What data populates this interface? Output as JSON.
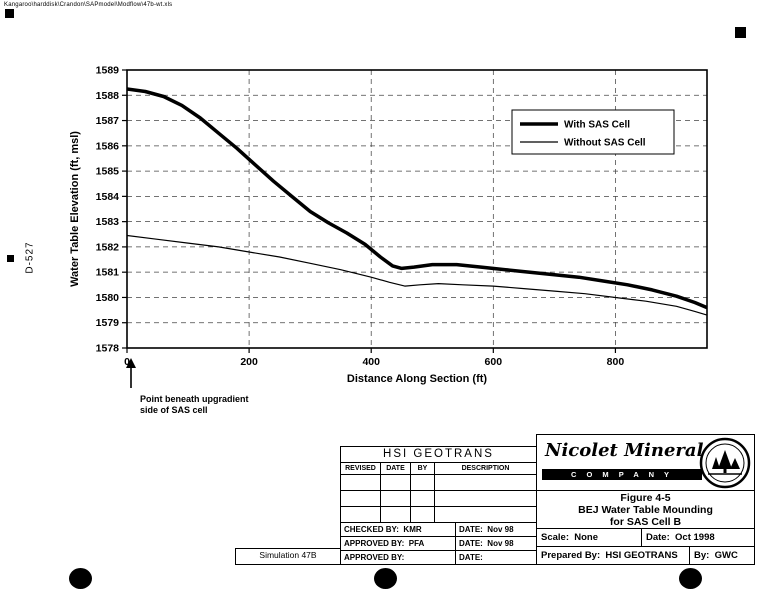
{
  "header": {
    "file_path": "Kangaroo\\harddisk\\Crandon\\SAPmodel\\Modflow\\47b-wt.xls",
    "doc_number": "D-527"
  },
  "chart_data": {
    "type": "line",
    "title": "",
    "xlabel": "Distance Along Section (ft)",
    "ylabel": "Water Table Elevation (ft, msl)",
    "xlim": [
      0,
      950
    ],
    "ylim": [
      1578,
      1589
    ],
    "xticks": [
      0,
      200,
      400,
      600,
      800
    ],
    "yticks": [
      1578,
      1579,
      1580,
      1581,
      1582,
      1583,
      1584,
      1585,
      1586,
      1587,
      1588,
      1589
    ],
    "grid": "dashed",
    "legend_position": "upper-right-inside",
    "series": [
      {
        "name": "With SAS Cell",
        "width": 3.5,
        "x": [
          0,
          30,
          60,
          90,
          120,
          150,
          180,
          210,
          240,
          270,
          300,
          330,
          360,
          390,
          415,
          435,
          450,
          470,
          500,
          540,
          580,
          620,
          660,
          700,
          740,
          780,
          820,
          860,
          900,
          930,
          950
        ],
        "y": [
          1588.25,
          1588.15,
          1587.95,
          1587.6,
          1587.1,
          1586.5,
          1585.9,
          1585.25,
          1584.6,
          1584.0,
          1583.4,
          1582.95,
          1582.55,
          1582.1,
          1581.6,
          1581.25,
          1581.15,
          1581.2,
          1581.3,
          1581.3,
          1581.2,
          1581.1,
          1581.0,
          1580.9,
          1580.8,
          1580.65,
          1580.5,
          1580.3,
          1580.05,
          1579.8,
          1579.6
        ]
      },
      {
        "name": "Without SAS Cell",
        "width": 1.2,
        "x": [
          0,
          50,
          100,
          150,
          200,
          250,
          300,
          350,
          400,
          430,
          455,
          480,
          510,
          550,
          600,
          650,
          700,
          750,
          800,
          850,
          900,
          930,
          950
        ],
        "y": [
          1582.45,
          1582.3,
          1582.15,
          1582.0,
          1581.8,
          1581.6,
          1581.35,
          1581.1,
          1580.8,
          1580.6,
          1580.45,
          1580.5,
          1580.55,
          1580.5,
          1580.45,
          1580.35,
          1580.25,
          1580.15,
          1580.0,
          1579.85,
          1579.65,
          1579.45,
          1579.3
        ]
      }
    ]
  },
  "annotation": {
    "line1": "Point beneath upgradient",
    "line2": "side of SAS cell"
  },
  "title_block": {
    "simulation_label": "Simulation 47B",
    "org_name": "HSI GEOTRANS",
    "revision_headers": [
      "REVISED",
      "DATE",
      "BY",
      "DESCRIPTION"
    ],
    "sign_rows": [
      {
        "left": "CHECKED BY:  KMR",
        "right": "DATE:  Nov 98"
      },
      {
        "left": "APPROVED BY:  PFA",
        "right": "DATE:  Nov 98"
      },
      {
        "left": "APPROVED BY:",
        "right": "DATE:"
      }
    ]
  },
  "company_block": {
    "name_script": "Nicolet Minerals",
    "company_bar": "C O M P A N Y",
    "figure_no": "Figure 4-5",
    "figure_title1": "BEJ Water Table Mounding",
    "figure_title2": "for SAS Cell B",
    "info_rows": [
      {
        "left": "Scale:  None",
        "right": "Date:  Oct 1998"
      },
      {
        "left": "Prepared By:  HSI GEOTRANS",
        "right": "By:  GWC"
      }
    ]
  }
}
